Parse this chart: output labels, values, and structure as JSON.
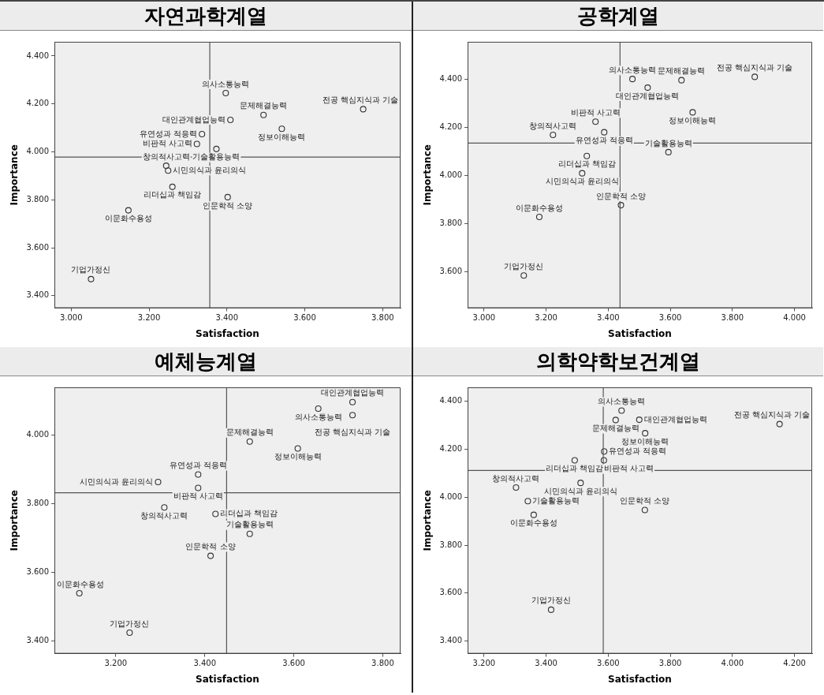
{
  "chart_data": [
    {
      "type": "scatter",
      "title": "자연과학계열",
      "xlabel": "Satisfaction",
      "ylabel": "Importance",
      "color": "#333333",
      "marker": "circle",
      "x": [
        3.397,
        3.494,
        3.75,
        3.409,
        3.541,
        3.336,
        3.323,
        3.373,
        3.244,
        3.249,
        3.26,
        3.402,
        3.147,
        3.051
      ],
      "values": [
        4.245,
        4.154,
        4.178,
        4.133,
        4.096,
        4.074,
        4.033,
        4.012,
        3.942,
        3.922,
        3.854,
        3.811,
        3.756,
        3.469
      ],
      "xlim": [
        2.957,
        3.846
      ],
      "ylim": [
        3.348,
        4.459
      ],
      "xticks": [
        {
          "value": 3.0,
          "label": "3.000"
        },
        {
          "value": 3.2,
          "label": "3.200"
        },
        {
          "value": 3.4,
          "label": "3.400"
        },
        {
          "value": 3.6,
          "label": "3.600"
        },
        {
          "value": 3.8,
          "label": "3.800"
        }
      ],
      "yticks": [
        {
          "value": 3.4,
          "label": "3.400"
        },
        {
          "value": 3.6,
          "label": "3.600"
        },
        {
          "value": 3.8,
          "label": "3.800"
        },
        {
          "value": 4.0,
          "label": "4.000"
        },
        {
          "value": 4.2,
          "label": "4.200"
        },
        {
          "value": 4.4,
          "label": "4.400"
        }
      ],
      "ref_lines": [
        {
          "axis": "x",
          "value": 3.356
        },
        {
          "axis": "y",
          "value": 3.978
        }
      ],
      "annotations": [
        {
          "text": "의사소통능력",
          "x": 3.397,
          "y": 4.245
        },
        {
          "text": "문제해결능력",
          "x": 3.494,
          "y": 4.154
        },
        {
          "text": "전공 핵심지식과 기술",
          "x": 3.75,
          "y": 4.178
        },
        {
          "text": "대인관계협업능력",
          "x": 3.409,
          "y": 4.133
        },
        {
          "text": "정보이해능력",
          "x": 3.541,
          "y": 4.096
        },
        {
          "text": "유연성과 적응력",
          "x": 3.336,
          "y": 4.074
        },
        {
          "text": "비판적 사고력",
          "x": 3.323,
          "y": 4.033
        },
        {
          "text": "기술활용능력",
          "x": 3.373,
          "y": 4.012
        },
        {
          "text": "창의적사고력",
          "x": 3.244,
          "y": 3.942
        },
        {
          "text": "시민의식과 윤리의식",
          "x": 3.249,
          "y": 3.922
        },
        {
          "text": "리더십과 책임감",
          "x": 3.26,
          "y": 3.854
        },
        {
          "text": "인문학적 소양",
          "x": 3.402,
          "y": 3.811
        },
        {
          "text": "이문화수용성",
          "x": 3.147,
          "y": 3.756
        },
        {
          "text": "기업가정신",
          "x": 3.051,
          "y": 3.469
        }
      ]
    },
    {
      "type": "scatter",
      "title": "공학계열",
      "xlabel": "Satisfaction",
      "ylabel": "Importance",
      "color": "#333333",
      "marker": "circle",
      "x": [
        3.478,
        3.636,
        3.872,
        3.527,
        3.672,
        3.359,
        3.387,
        3.222,
        3.594,
        3.331,
        3.316,
        3.441,
        3.178,
        3.128
      ],
      "values": [
        4.402,
        4.397,
        4.411,
        4.366,
        4.263,
        4.224,
        4.18,
        4.169,
        4.097,
        4.081,
        4.009,
        3.876,
        3.827,
        3.583
      ],
      "xlim": [
        2.947,
        4.057
      ],
      "ylim": [
        3.447,
        4.557
      ],
      "xticks": [
        {
          "value": 3.0,
          "label": "3.000"
        },
        {
          "value": 3.2,
          "label": "3.200"
        },
        {
          "value": 3.4,
          "label": "3.400"
        },
        {
          "value": 3.6,
          "label": "3.600"
        },
        {
          "value": 3.8,
          "label": "3.800"
        },
        {
          "value": 4.0,
          "label": "4.000"
        }
      ],
      "yticks": [
        {
          "value": 3.6,
          "label": "3.600"
        },
        {
          "value": 3.8,
          "label": "3.800"
        },
        {
          "value": 4.0,
          "label": "4.000"
        },
        {
          "value": 4.2,
          "label": "4.200"
        },
        {
          "value": 4.4,
          "label": "4.400"
        }
      ],
      "ref_lines": [
        {
          "axis": "x",
          "value": 3.438
        },
        {
          "axis": "y",
          "value": 4.135
        }
      ],
      "annotations": [
        {
          "text": "의사소통능력",
          "x": 3.478,
          "y": 4.402
        },
        {
          "text": "문제해결능력",
          "x": 3.636,
          "y": 4.397
        },
        {
          "text": "전공 핵심지식과 기술",
          "x": 3.872,
          "y": 4.411
        },
        {
          "text": "대인관계협업능력",
          "x": 3.527,
          "y": 4.366
        },
        {
          "text": "정보이해능력",
          "x": 3.672,
          "y": 4.263
        },
        {
          "text": "비판적 사고력",
          "x": 3.359,
          "y": 4.224
        },
        {
          "text": "유연성과 적응력",
          "x": 3.387,
          "y": 4.18
        },
        {
          "text": "창의적사고력",
          "x": 3.222,
          "y": 4.169
        },
        {
          "text": "기술활용능력",
          "x": 3.594,
          "y": 4.097
        },
        {
          "text": "리더십과 책임감",
          "x": 3.331,
          "y": 4.081
        },
        {
          "text": "시민의식과 윤리의식",
          "x": 3.316,
          "y": 4.009
        },
        {
          "text": "인문학적 소양",
          "x": 3.441,
          "y": 3.876
        },
        {
          "text": "이문화수용성",
          "x": 3.178,
          "y": 3.827
        },
        {
          "text": "기업가정신",
          "x": 3.128,
          "y": 3.583
        }
      ]
    },
    {
      "type": "scatter",
      "title": "예체능계열",
      "xlabel": "Satisfaction",
      "ylabel": "Importance",
      "color": "#333333",
      "marker": "circle",
      "x": [
        3.732,
        3.655,
        3.732,
        3.501,
        3.609,
        3.385,
        3.295,
        3.385,
        3.309,
        3.424,
        3.501,
        3.413,
        3.118,
        3.231
      ],
      "values": [
        4.096,
        4.077,
        4.058,
        3.981,
        3.961,
        3.885,
        3.863,
        3.846,
        3.789,
        3.77,
        3.712,
        3.648,
        3.539,
        3.424
      ],
      "xlim": [
        3.062,
        3.84
      ],
      "ylim": [
        3.363,
        4.139
      ],
      "xticks": [
        {
          "value": 3.2,
          "label": "3.200"
        },
        {
          "value": 3.4,
          "label": "3.400"
        },
        {
          "value": 3.6,
          "label": "3.600"
        },
        {
          "value": 3.8,
          "label": "3.800"
        }
      ],
      "yticks": [
        {
          "value": 3.4,
          "label": "3.400"
        },
        {
          "value": 3.6,
          "label": "3.600"
        },
        {
          "value": 3.8,
          "label": "3.800"
        },
        {
          "value": 4.0,
          "label": "4.000"
        }
      ],
      "ref_lines": [
        {
          "axis": "x",
          "value": 3.449
        },
        {
          "axis": "y",
          "value": 3.832
        }
      ],
      "annotations": [
        {
          "text": "대인관계협업능력",
          "x": 3.732,
          "y": 4.096
        },
        {
          "text": "의사소통능력",
          "x": 3.655,
          "y": 4.077
        },
        {
          "text": "전공 핵심지식과 기술",
          "x": 3.732,
          "y": 4.058
        },
        {
          "text": "문제해결능력",
          "x": 3.501,
          "y": 3.981
        },
        {
          "text": "정보이해능력",
          "x": 3.609,
          "y": 3.961
        },
        {
          "text": "유연성과 적응력",
          "x": 3.385,
          "y": 3.885
        },
        {
          "text": "시민의식과 윤리의식",
          "x": 3.295,
          "y": 3.863
        },
        {
          "text": "비판적 사고력",
          "x": 3.385,
          "y": 3.846
        },
        {
          "text": "창의적사고력",
          "x": 3.309,
          "y": 3.789
        },
        {
          "text": "리더십과 책임감",
          "x": 3.424,
          "y": 3.77
        },
        {
          "text": "기술활용능력",
          "x": 3.501,
          "y": 3.712
        },
        {
          "text": "인문학적 소양",
          "x": 3.413,
          "y": 3.648
        },
        {
          "text": "이문화수용성",
          "x": 3.118,
          "y": 3.539
        },
        {
          "text": "기업가정신",
          "x": 3.231,
          "y": 3.424
        }
      ]
    },
    {
      "type": "scatter",
      "title": "의학약학보건계열",
      "xlabel": "Satisfaction",
      "ylabel": "Importance",
      "color": "#333333",
      "marker": "circle",
      "x": [
        3.643,
        3.624,
        3.7,
        4.152,
        3.719,
        3.587,
        3.492,
        3.586,
        3.511,
        3.303,
        3.341,
        3.36,
        3.718,
        3.416
      ],
      "values": [
        4.36,
        4.321,
        4.322,
        4.304,
        4.266,
        4.19,
        4.153,
        4.153,
        4.059,
        4.04,
        3.983,
        3.926,
        3.946,
        3.531
      ],
      "xlim": [
        3.147,
        4.257
      ],
      "ylim": [
        3.348,
        4.457
      ],
      "xticks": [
        {
          "value": 3.2,
          "label": "3.200"
        },
        {
          "value": 3.4,
          "label": "3.400"
        },
        {
          "value": 3.6,
          "label": "3.600"
        },
        {
          "value": 3.8,
          "label": "3.800"
        },
        {
          "value": 4.0,
          "label": "4.000"
        },
        {
          "value": 4.2,
          "label": "4.200"
        }
      ],
      "yticks": [
        {
          "value": 3.4,
          "label": "3.400"
        },
        {
          "value": 3.6,
          "label": "3.600"
        },
        {
          "value": 3.8,
          "label": "3.800"
        },
        {
          "value": 4.0,
          "label": "4.000"
        },
        {
          "value": 4.2,
          "label": "4.200"
        },
        {
          "value": 4.4,
          "label": "4.400"
        }
      ],
      "ref_lines": [
        {
          "axis": "x",
          "value": 3.584
        },
        {
          "axis": "y",
          "value": 4.111
        }
      ],
      "annotations": [
        {
          "text": "의사소통능력",
          "x": 3.643,
          "y": 4.36
        },
        {
          "text": "문제해결능력",
          "x": 3.624,
          "y": 4.321
        },
        {
          "text": "대인관계협업능력",
          "x": 3.7,
          "y": 4.322
        },
        {
          "text": "전공 핵심지식과 기술",
          "x": 4.152,
          "y": 4.304
        },
        {
          "text": "정보이해능력",
          "x": 3.719,
          "y": 4.266
        },
        {
          "text": "유연성과 적응력",
          "x": 3.587,
          "y": 4.19
        },
        {
          "text": "리더십과 책임감",
          "x": 3.492,
          "y": 4.153
        },
        {
          "text": "비판적 사고력",
          "x": 3.586,
          "y": 4.153
        },
        {
          "text": "시민의식과 윤리의식",
          "x": 3.511,
          "y": 4.059
        },
        {
          "text": "창의적사고력",
          "x": 3.303,
          "y": 4.04
        },
        {
          "text": "기술활용능력",
          "x": 3.341,
          "y": 3.983
        },
        {
          "text": "이문화수용성",
          "x": 3.36,
          "y": 3.926
        },
        {
          "text": "인문학적 소양",
          "x": 3.718,
          "y": 3.946
        },
        {
          "text": "기업가정신",
          "x": 3.416,
          "y": 3.531
        }
      ]
    }
  ]
}
